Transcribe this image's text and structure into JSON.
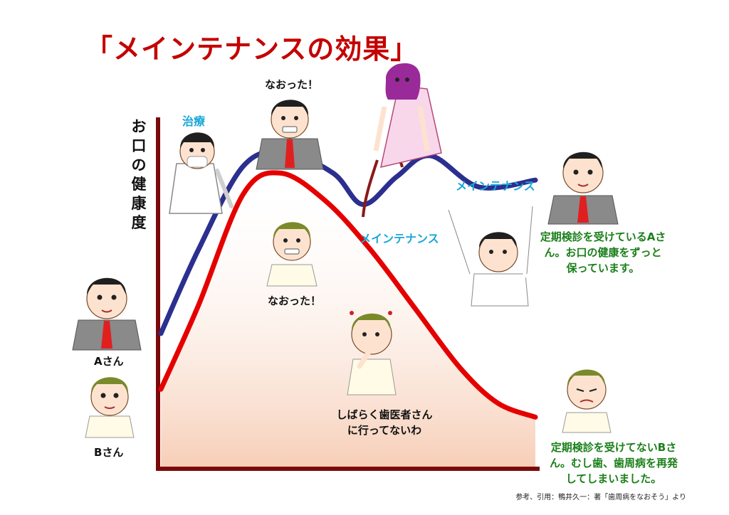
{
  "title": "「メインテナンスの効果」",
  "y_axis_label": "お口の健康度",
  "annotations": {
    "treatment": "治療",
    "cured_top": "なおった！",
    "cured_bottom": "なおった！",
    "maintenance_1": "メインテナンス",
    "maintenance_2": "メインテナンス",
    "not_going": [
      "しばらく歯医者さん",
      "に行ってないわ"
    ],
    "person_a": "Aさん",
    "person_b": "Bさん",
    "result_a": [
      "定期検診を受けているAさ",
      "ん。お口の健康をずっと",
      "保っています。"
    ],
    "result_b": [
      "定期検診を受けてないBさ",
      "ん。むし歯、歯周病を再発",
      "してしまいました。"
    ]
  },
  "source": "参考、引用：鴨井久一：著「歯周病をなおそう」より",
  "colors": {
    "title": "#c40000",
    "axis": "#7a0a0a",
    "line_a": "#2b2f8f",
    "line_b": "#e50000",
    "annotation_cyan": "#1aa7d8",
    "annotation_green": "#1a7f1a"
  },
  "icons": [
    "dentist-icon",
    "cured-man-icon",
    "nurse-icon",
    "person-a-icon",
    "person-b-icon",
    "cheering-man-icon",
    "thinking-boy-icon",
    "worried-boy-icon"
  ],
  "chart_data": {
    "type": "line",
    "series": [
      {
        "name": "Aさん",
        "color": "#2b2f8f",
        "points": [
          [
            0,
            0.38
          ],
          [
            0.1,
            0.62
          ],
          [
            0.22,
            0.86
          ],
          [
            0.33,
            0.9
          ],
          [
            0.46,
            0.84
          ],
          [
            0.54,
            0.75
          ],
          [
            0.63,
            0.83
          ],
          [
            0.72,
            0.89
          ],
          [
            0.85,
            0.8
          ],
          [
            1.0,
            0.82
          ]
        ]
      },
      {
        "name": "Bさん",
        "color": "#e50000",
        "points": [
          [
            0,
            0.22
          ],
          [
            0.1,
            0.46
          ],
          [
            0.22,
            0.78
          ],
          [
            0.32,
            0.84
          ],
          [
            0.44,
            0.76
          ],
          [
            0.56,
            0.62
          ],
          [
            0.68,
            0.45
          ],
          [
            0.8,
            0.28
          ],
          [
            0.9,
            0.18
          ],
          [
            1.0,
            0.14
          ]
        ]
      }
    ]
  }
}
